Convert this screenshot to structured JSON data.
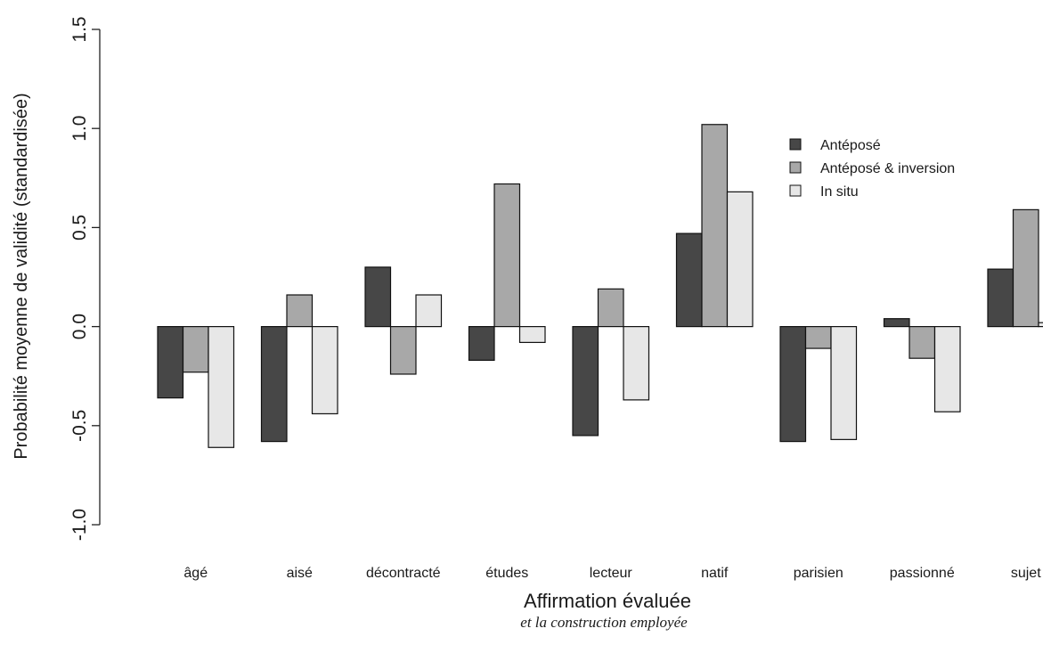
{
  "chart_data": {
    "type": "bar",
    "title": "",
    "xlabel": "Affirmation évaluée",
    "xlabel_sub": "et la construction employée",
    "ylabel": "Probabilité moyenne de validité (standardisée)",
    "ylim": [
      -1.0,
      1.5
    ],
    "yticks": [
      -1.0,
      -0.5,
      0.0,
      0.5,
      1.0,
      1.5
    ],
    "ytick_labels": [
      "-1.0",
      "-0.5",
      "0.0",
      "0.5",
      "1.0",
      "1.5"
    ],
    "grid": false,
    "legend_position": "top-right",
    "categories": [
      "âgé",
      "aisé",
      "décontracté",
      "études",
      "lecteur",
      "natif",
      "parisien",
      "passionné",
      "sujet"
    ],
    "series": [
      {
        "name": "Antéposé",
        "color": "#474747",
        "values": [
          -0.36,
          -0.58,
          0.3,
          -0.17,
          -0.55,
          0.47,
          -0.58,
          0.04,
          0.29
        ]
      },
      {
        "name": "Antéposé & inversion",
        "color": "#a8a8a8",
        "values": [
          -0.23,
          0.16,
          -0.24,
          0.72,
          0.19,
          1.02,
          -0.11,
          -0.16,
          0.59
        ]
      },
      {
        "name": "In situ",
        "color": "#e7e7e7",
        "values": [
          -0.61,
          -0.44,
          0.16,
          -0.08,
          -0.37,
          0.68,
          -0.57,
          -0.43,
          0.02
        ]
      }
    ]
  }
}
